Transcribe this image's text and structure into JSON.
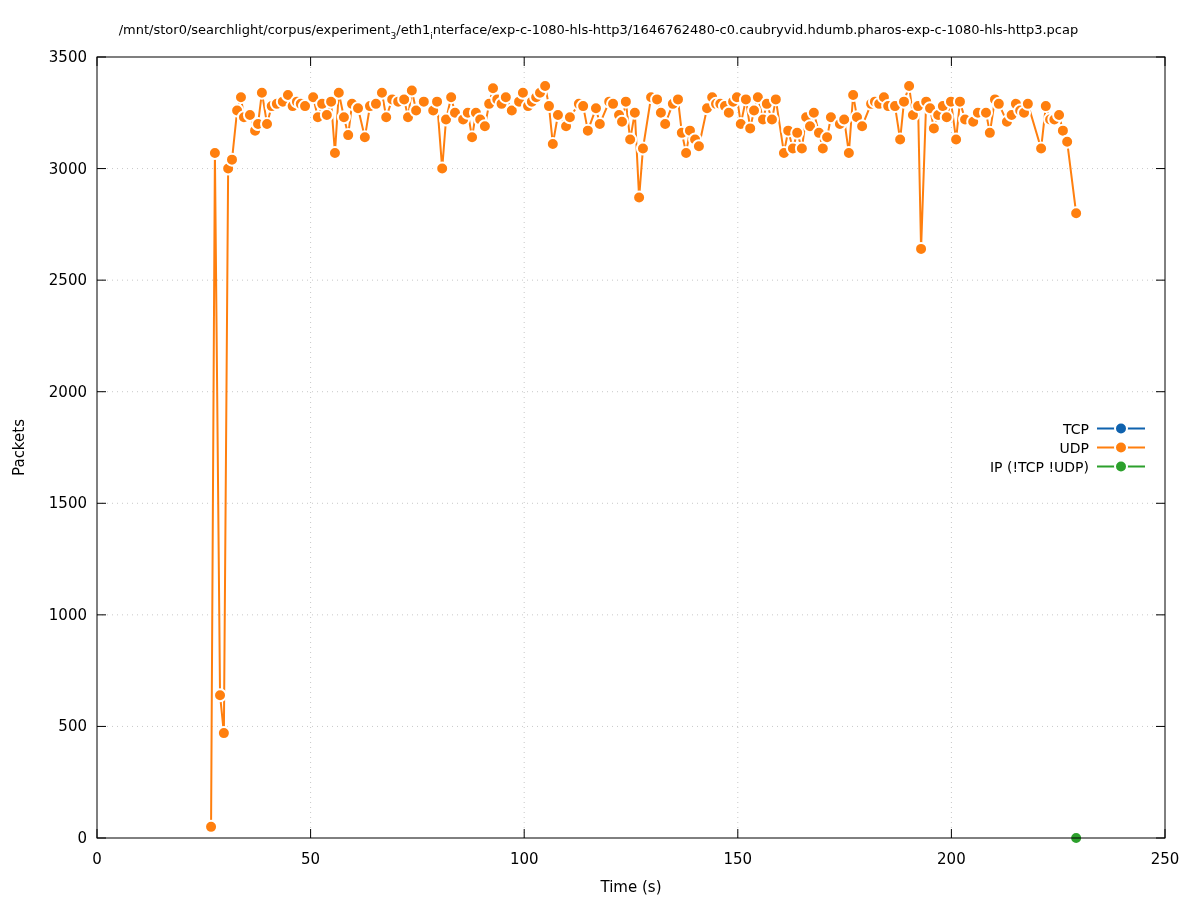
{
  "chart_data": {
    "type": "line",
    "title": "/mnt/stor0/searchlight/corpus/experiment$_{3}$/eth1$_{i}$nterface/exp-c-1080-hls-http3/1646762480-c0.caubryvid.hdumb.pharos-exp-c-1080-hls-http3.pcap",
    "xlabel": "Time (s)",
    "ylabel": "Packets",
    "xlim": [
      0,
      250
    ],
    "ylim": [
      0,
      3500
    ],
    "xticks": [
      0,
      50,
      100,
      150,
      200,
      250
    ],
    "yticks": [
      0,
      500,
      1000,
      1500,
      2000,
      2500,
      3000,
      3500
    ],
    "grid": true,
    "legend": "right",
    "marker": "circle",
    "line_style": "solid",
    "series": [
      {
        "name": "TCP",
        "color": "#0f62ae"
      },
      {
        "name": "UDP",
        "color": "#ff7f0e",
        "x": [
          26.7,
          27.6,
          28.8,
          29.7,
          30.7,
          31.6,
          32.8,
          33.7,
          34.4,
          35.8,
          37.0,
          37.7,
          38.6,
          39.8,
          40.9,
          42.1,
          43.5,
          44.7,
          45.8,
          46.8,
          47.7,
          48.7,
          50.6,
          51.7,
          52.7,
          53.8,
          54.8,
          55.7,
          56.6,
          57.8,
          58.8,
          59.7,
          61.1,
          62.7,
          63.9,
          65.3,
          66.7,
          67.7,
          69.1,
          70.5,
          71.9,
          72.8,
          73.7,
          74.7,
          76.5,
          78.7,
          79.6,
          80.8,
          81.7,
          82.9,
          83.8,
          85.7,
          86.8,
          87.8,
          88.7,
          89.7,
          90.8,
          91.8,
          92.7,
          93.7,
          94.7,
          95.7,
          97.1,
          98.8,
          99.7,
          100.9,
          101.8,
          102.8,
          103.7,
          104.9,
          105.8,
          106.7,
          107.9,
          109.8,
          110.7,
          112.8,
          113.8,
          114.9,
          116.8,
          117.7,
          119.9,
          120.8,
          122.2,
          122.9,
          123.8,
          124.8,
          125.9,
          126.9,
          127.8,
          129.7,
          131.1,
          132.0,
          133.0,
          134.8,
          136.0,
          136.9,
          137.9,
          138.8,
          140.0,
          140.9,
          142.8,
          144.0,
          144.9,
          145.9,
          147.0,
          147.9,
          148.9,
          149.8,
          150.7,
          151.9,
          152.9,
          153.8,
          154.7,
          155.9,
          156.8,
          158.0,
          158.9,
          160.8,
          161.8,
          162.9,
          163.9,
          165.0,
          166.0,
          166.9,
          167.8,
          169.0,
          169.9,
          170.9,
          171.8,
          173.9,
          174.9,
          176.0,
          177.0,
          177.9,
          179.1,
          181.2,
          182.1,
          183.1,
          184.2,
          185.2,
          186.8,
          188.0,
          188.9,
          190.1,
          191.0,
          192.2,
          192.9,
          194.1,
          195.0,
          195.9,
          196.9,
          198.0,
          198.9,
          199.9,
          201.1,
          202.0,
          203.2,
          205.1,
          206.2,
          208.1,
          209.0,
          210.2,
          211.1,
          213.0,
          214.1,
          215.1,
          216.1,
          217.0,
          217.9,
          221.0,
          222.1,
          223.1,
          224.1,
          225.2,
          226.1,
          227.1,
          229.2
        ],
        "values": [
          50,
          3070,
          640,
          470,
          3000,
          3040,
          3260,
          3320,
          3230,
          3240,
          3170,
          3200,
          3340,
          3200,
          3280,
          3290,
          3300,
          3330,
          3280,
          3300,
          3290,
          3280,
          3320,
          3230,
          3290,
          3240,
          3300,
          3070,
          3340,
          3230,
          3150,
          3290,
          3270,
          3140,
          3280,
          3290,
          3340,
          3230,
          3310,
          3300,
          3310,
          3230,
          3350,
          3260,
          3300,
          3260,
          3300,
          3000,
          3220,
          3320,
          3250,
          3220,
          3250,
          3140,
          3250,
          3220,
          3190,
          3290,
          3360,
          3310,
          3290,
          3320,
          3260,
          3300,
          3340,
          3280,
          3300,
          3320,
          3340,
          3370,
          3280,
          3110,
          3240,
          3190,
          3230,
          3290,
          3280,
          3170,
          3270,
          3200,
          3300,
          3290,
          3240,
          3210,
          3300,
          3130,
          3250,
          2870,
          3090,
          3320,
          3310,
          3250,
          3200,
          3290,
          3310,
          3160,
          3070,
          3170,
          3130,
          3100,
          3270,
          3320,
          3290,
          3290,
          3280,
          3250,
          3300,
          3320,
          3200,
          3310,
          3180,
          3260,
          3320,
          3220,
          3290,
          3220,
          3310,
          3070,
          3170,
          3090,
          3160,
          3090,
          3230,
          3190,
          3250,
          3160,
          3090,
          3140,
          3230,
          3200,
          3220,
          3070,
          3330,
          3230,
          3190,
          3290,
          3300,
          3290,
          3320,
          3280,
          3280,
          3130,
          3300,
          3370,
          3240,
          3280,
          2640,
          3300,
          3270,
          3180,
          3240,
          3280,
          3230,
          3300,
          3130,
          3300,
          3220,
          3210,
          3250,
          3250,
          3160,
          3310,
          3290,
          3210,
          3240,
          3290,
          3260,
          3250,
          3290,
          3090,
          3280,
          3220,
          3220,
          3240,
          3170,
          3120,
          2800
        ]
      },
      {
        "name": "IP (!TCP !UDP)",
        "color": "#2ca02c",
        "x": [
          229.2
        ],
        "values": [
          0
        ]
      }
    ]
  }
}
